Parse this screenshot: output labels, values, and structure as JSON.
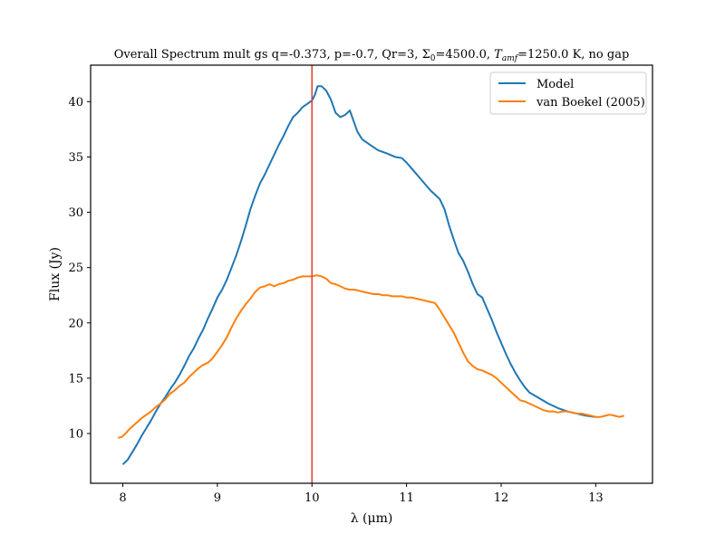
{
  "chart_data": {
    "type": "line",
    "title": "Overall Spectrum mult gs q=-0.373, p=-0.7, Qr=3, Σ₀=4500.0, T_amf=1250.0 K, no gap",
    "title_parts": {
      "before": "Overall Spectrum mult gs q=-0.373, p=-0.7, Qr=3, Σ",
      "sigma_sub": "0",
      "middle": "=4500.0, ",
      "T": "T",
      "T_sub": "amf",
      "after": "=1250.0 K, no gap"
    },
    "xlabel": "λ (μm)",
    "ylabel": "Flux (Jy)",
    "xlim": [
      7.66,
      13.6
    ],
    "ylim": [
      5.5,
      43.3
    ],
    "xticks": [
      8,
      9,
      10,
      11,
      12,
      13
    ],
    "yticks": [
      10,
      15,
      20,
      25,
      30,
      35,
      40
    ],
    "grid": false,
    "legend_position": "upper right",
    "vline": {
      "x": 10.0,
      "color": "#e0473a"
    },
    "series": [
      {
        "name": "Model",
        "color": "#1f77b4",
        "points": [
          [
            8.0,
            7.2
          ],
          [
            8.05,
            7.6
          ],
          [
            8.1,
            8.3
          ],
          [
            8.15,
            9.0
          ],
          [
            8.2,
            9.8
          ],
          [
            8.25,
            10.5
          ],
          [
            8.3,
            11.2
          ],
          [
            8.35,
            12.0
          ],
          [
            8.4,
            12.7
          ],
          [
            8.45,
            13.3
          ],
          [
            8.5,
            14.0
          ],
          [
            8.55,
            14.6
          ],
          [
            8.6,
            15.3
          ],
          [
            8.65,
            16.1
          ],
          [
            8.7,
            17.0
          ],
          [
            8.75,
            17.7
          ],
          [
            8.8,
            18.6
          ],
          [
            8.85,
            19.4
          ],
          [
            8.9,
            20.4
          ],
          [
            8.95,
            21.3
          ],
          [
            9.0,
            22.3
          ],
          [
            9.05,
            23.0
          ],
          [
            9.1,
            23.9
          ],
          [
            9.15,
            25.0
          ],
          [
            9.2,
            26.1
          ],
          [
            9.25,
            27.4
          ],
          [
            9.3,
            28.8
          ],
          [
            9.35,
            30.3
          ],
          [
            9.4,
            31.5
          ],
          [
            9.45,
            32.6
          ],
          [
            9.5,
            33.4
          ],
          [
            9.55,
            34.3
          ],
          [
            9.6,
            35.2
          ],
          [
            9.65,
            36.1
          ],
          [
            9.7,
            36.9
          ],
          [
            9.75,
            37.8
          ],
          [
            9.8,
            38.6
          ],
          [
            9.85,
            39.0
          ],
          [
            9.9,
            39.5
          ],
          [
            9.95,
            39.8
          ],
          [
            10.0,
            40.1
          ],
          [
            10.03,
            40.6
          ],
          [
            10.06,
            41.4
          ],
          [
            10.1,
            41.4
          ],
          [
            10.15,
            41.0
          ],
          [
            10.2,
            40.2
          ],
          [
            10.25,
            39.0
          ],
          [
            10.3,
            38.6
          ],
          [
            10.35,
            38.8
          ],
          [
            10.4,
            39.2
          ],
          [
            10.43,
            38.5
          ],
          [
            10.48,
            37.3
          ],
          [
            10.53,
            36.6
          ],
          [
            10.58,
            36.3
          ],
          [
            10.63,
            36.0
          ],
          [
            10.7,
            35.6
          ],
          [
            10.8,
            35.3
          ],
          [
            10.88,
            35.0
          ],
          [
            10.95,
            34.9
          ],
          [
            11.0,
            34.5
          ],
          [
            11.05,
            34.0
          ],
          [
            11.1,
            33.5
          ],
          [
            11.15,
            33.0
          ],
          [
            11.2,
            32.5
          ],
          [
            11.25,
            32.0
          ],
          [
            11.3,
            31.6
          ],
          [
            11.35,
            31.2
          ],
          [
            11.4,
            30.3
          ],
          [
            11.45,
            28.8
          ],
          [
            11.5,
            27.5
          ],
          [
            11.55,
            26.3
          ],
          [
            11.6,
            25.6
          ],
          [
            11.65,
            24.6
          ],
          [
            11.7,
            23.5
          ],
          [
            11.75,
            22.6
          ],
          [
            11.8,
            22.3
          ],
          [
            11.85,
            21.3
          ],
          [
            11.9,
            20.3
          ],
          [
            11.95,
            19.2
          ],
          [
            12.0,
            18.2
          ],
          [
            12.05,
            17.2
          ],
          [
            12.1,
            16.3
          ],
          [
            12.15,
            15.5
          ],
          [
            12.2,
            14.8
          ],
          [
            12.25,
            14.2
          ],
          [
            12.3,
            13.7
          ],
          [
            12.4,
            13.2
          ],
          [
            12.5,
            12.7
          ],
          [
            12.6,
            12.3
          ],
          [
            12.7,
            12.0
          ],
          [
            12.8,
            11.8
          ],
          [
            12.9,
            11.6
          ],
          [
            13.0,
            11.5
          ]
        ]
      },
      {
        "name": "van Boekel (2005)",
        "color": "#ff7f0e",
        "points": [
          [
            7.95,
            9.6
          ],
          [
            7.99,
            9.7
          ],
          [
            8.03,
            10.0
          ],
          [
            8.07,
            10.4
          ],
          [
            8.11,
            10.7
          ],
          [
            8.15,
            11.0
          ],
          [
            8.2,
            11.4
          ],
          [
            8.25,
            11.7
          ],
          [
            8.3,
            12.0
          ],
          [
            8.35,
            12.4
          ],
          [
            8.4,
            12.7
          ],
          [
            8.45,
            13.1
          ],
          [
            8.5,
            13.6
          ],
          [
            8.55,
            13.9
          ],
          [
            8.6,
            14.3
          ],
          [
            8.65,
            14.6
          ],
          [
            8.7,
            15.1
          ],
          [
            8.75,
            15.5
          ],
          [
            8.8,
            15.9
          ],
          [
            8.85,
            16.2
          ],
          [
            8.9,
            16.4
          ],
          [
            8.95,
            16.8
          ],
          [
            9.0,
            17.4
          ],
          [
            9.05,
            18.0
          ],
          [
            9.1,
            18.7
          ],
          [
            9.15,
            19.6
          ],
          [
            9.2,
            20.4
          ],
          [
            9.25,
            21.1
          ],
          [
            9.3,
            21.7
          ],
          [
            9.35,
            22.2
          ],
          [
            9.4,
            22.8
          ],
          [
            9.45,
            23.2
          ],
          [
            9.5,
            23.3
          ],
          [
            9.55,
            23.5
          ],
          [
            9.6,
            23.3
          ],
          [
            9.65,
            23.5
          ],
          [
            9.7,
            23.6
          ],
          [
            9.75,
            23.8
          ],
          [
            9.8,
            23.9
          ],
          [
            9.85,
            24.1
          ],
          [
            9.9,
            24.2
          ],
          [
            9.95,
            24.2
          ],
          [
            10.0,
            24.2
          ],
          [
            10.05,
            24.3
          ],
          [
            10.1,
            24.2
          ],
          [
            10.15,
            24.0
          ],
          [
            10.2,
            23.6
          ],
          [
            10.25,
            23.5
          ],
          [
            10.3,
            23.3
          ],
          [
            10.35,
            23.1
          ],
          [
            10.4,
            23.0
          ],
          [
            10.45,
            23.0
          ],
          [
            10.5,
            22.9
          ],
          [
            10.55,
            22.8
          ],
          [
            10.6,
            22.7
          ],
          [
            10.65,
            22.6
          ],
          [
            10.7,
            22.6
          ],
          [
            10.75,
            22.5
          ],
          [
            10.8,
            22.5
          ],
          [
            10.85,
            22.4
          ],
          [
            10.9,
            22.4
          ],
          [
            10.95,
            22.4
          ],
          [
            11.0,
            22.3
          ],
          [
            11.05,
            22.3
          ],
          [
            11.1,
            22.2
          ],
          [
            11.15,
            22.1
          ],
          [
            11.2,
            22.0
          ],
          [
            11.25,
            21.9
          ],
          [
            11.3,
            21.8
          ],
          [
            11.35,
            21.2
          ],
          [
            11.4,
            20.5
          ],
          [
            11.45,
            19.8
          ],
          [
            11.5,
            19.1
          ],
          [
            11.55,
            18.2
          ],
          [
            11.6,
            17.3
          ],
          [
            11.65,
            16.5
          ],
          [
            11.7,
            16.1
          ],
          [
            11.75,
            15.8
          ],
          [
            11.8,
            15.7
          ],
          [
            11.85,
            15.5
          ],
          [
            11.9,
            15.3
          ],
          [
            11.95,
            15.0
          ],
          [
            12.0,
            14.6
          ],
          [
            12.05,
            14.2
          ],
          [
            12.1,
            13.8
          ],
          [
            12.15,
            13.4
          ],
          [
            12.2,
            13.0
          ],
          [
            12.25,
            12.9
          ],
          [
            12.3,
            12.7
          ],
          [
            12.35,
            12.5
          ],
          [
            12.4,
            12.3
          ],
          [
            12.45,
            12.1
          ],
          [
            12.5,
            12.0
          ],
          [
            12.55,
            12.0
          ],
          [
            12.6,
            11.9
          ],
          [
            12.65,
            12.0
          ],
          [
            12.7,
            12.0
          ],
          [
            12.75,
            11.9
          ],
          [
            12.8,
            11.8
          ],
          [
            12.85,
            11.8
          ],
          [
            12.9,
            11.7
          ],
          [
            12.95,
            11.6
          ],
          [
            13.0,
            11.5
          ],
          [
            13.05,
            11.5
          ],
          [
            13.1,
            11.6
          ],
          [
            13.15,
            11.7
          ],
          [
            13.2,
            11.6
          ],
          [
            13.25,
            11.5
          ],
          [
            13.3,
            11.6
          ]
        ]
      }
    ]
  }
}
